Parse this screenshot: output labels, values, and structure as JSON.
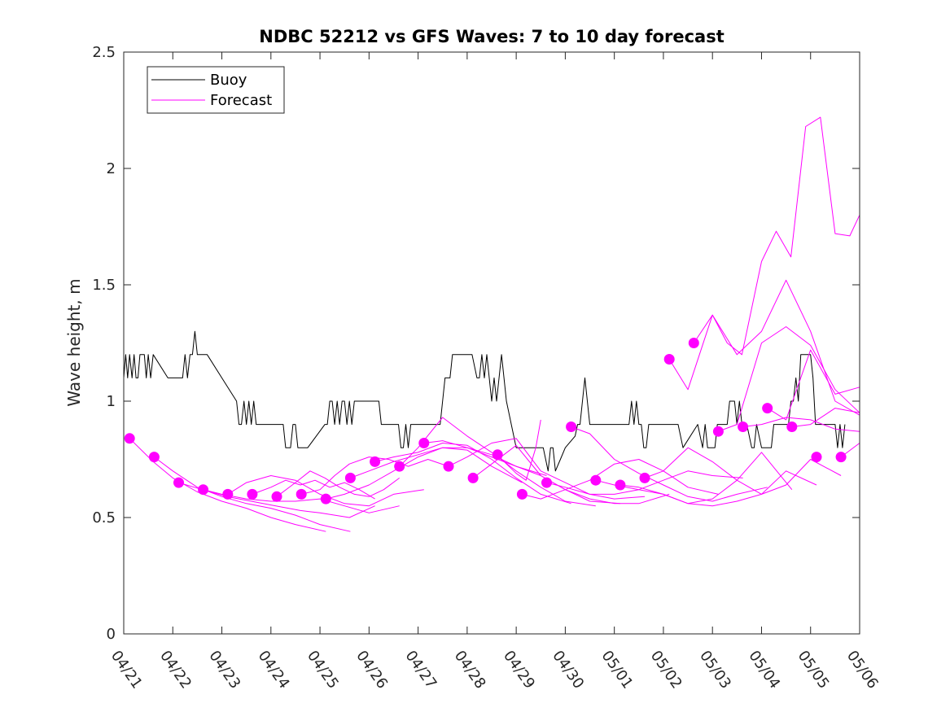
{
  "chart_data": {
    "type": "line",
    "title": "NDBC 52212 vs GFS Waves: 7 to 10 day forecast",
    "xlabel": "",
    "ylabel": "Wave height, m",
    "xlim": [
      0,
      15
    ],
    "ylim": [
      0,
      2.5
    ],
    "x_ticks": [
      "04/21",
      "04/22",
      "04/23",
      "04/24",
      "04/25",
      "04/26",
      "04/27",
      "04/28",
      "04/29",
      "04/30",
      "05/01",
      "05/02",
      "05/03",
      "05/04",
      "05/05",
      "05/06"
    ],
    "y_ticks": [
      "0",
      "0.5",
      "1",
      "1.5",
      "2",
      "2.5"
    ],
    "grid": false,
    "legend_position": "top-left",
    "colors": {
      "buoy": "#000000",
      "forecast": "#ff00ff"
    },
    "series": [
      {
        "name": "Buoy",
        "style": "line",
        "x": [
          0,
          0.04,
          0.08,
          0.12,
          0.17,
          0.21,
          0.25,
          0.29,
          0.33,
          0.37,
          0.42,
          0.46,
          0.5,
          0.55,
          0.6,
          0.9,
          1.2,
          1.25,
          1.3,
          1.35,
          1.4,
          1.45,
          1.5,
          1.55,
          1.6,
          1.65,
          1.7,
          2.0,
          2.3,
          2.35,
          2.4,
          2.45,
          2.5,
          2.55,
          2.6,
          2.65,
          2.7,
          2.75,
          3.0,
          3.2,
          3.25,
          3.3,
          3.35,
          3.4,
          3.45,
          3.5,
          3.55,
          3.6,
          3.65,
          3.7,
          3.75,
          4.1,
          4.15,
          4.2,
          4.25,
          4.3,
          4.35,
          4.4,
          4.45,
          4.5,
          4.55,
          4.6,
          4.65,
          4.7,
          4.75,
          4.8,
          4.85,
          4.9,
          5.0,
          5.2,
          5.25,
          5.35,
          5.5,
          5.55,
          5.6,
          5.65,
          5.7,
          5.75,
          5.8,
          5.85,
          5.9,
          6.0,
          6.2,
          6.45,
          6.5,
          6.55,
          6.6,
          6.65,
          6.7,
          6.75,
          6.8,
          7.1,
          7.2,
          7.25,
          7.3,
          7.35,
          7.4,
          7.45,
          7.5,
          7.55,
          7.6,
          7.7,
          7.8,
          7.9,
          8.0,
          8.05,
          8.1,
          8.15,
          8.2,
          8.25,
          8.3,
          8.35,
          8.4,
          8.45,
          8.5,
          8.55,
          8.6,
          8.65,
          8.7,
          8.75,
          8.8,
          8.9,
          9.0,
          9.2,
          9.25,
          9.3,
          9.35,
          9.4,
          9.45,
          9.5,
          9.55,
          9.6,
          9.65,
          9.7,
          9.75,
          9.8,
          9.85,
          9.9,
          10.0,
          10.1,
          10.15,
          10.2,
          10.25,
          10.3,
          10.35,
          10.4,
          10.45,
          10.5,
          10.55,
          10.6,
          10.65,
          10.7,
          10.75,
          10.8,
          10.85,
          10.9,
          11.0,
          11.1,
          11.15,
          11.2,
          11.3,
          11.4,
          11.7,
          11.8,
          11.85,
          11.9,
          11.95,
          12.0,
          12.05,
          12.1,
          12.15,
          12.2,
          12.25,
          12.3,
          12.35,
          12.4,
          12.45,
          12.5,
          12.55,
          12.6,
          12.65,
          12.7,
          12.8,
          12.85,
          12.9,
          13.0,
          13.1,
          13.15,
          13.2,
          13.25,
          13.3,
          13.35,
          13.4,
          13.45,
          13.5,
          13.55,
          13.6,
          13.65,
          13.7,
          13.75,
          13.8,
          14.0,
          14.05,
          14.1,
          14.15,
          14.2,
          14.25,
          14.3,
          14.35,
          14.4,
          14.45,
          14.5,
          14.55,
          14.6,
          14.65,
          14.7
        ],
        "y": [
          1.1,
          1.2,
          1.1,
          1.2,
          1.1,
          1.2,
          1.1,
          1.1,
          1.2,
          1.2,
          1.2,
          1.1,
          1.2,
          1.1,
          1.2,
          1.1,
          1.1,
          1.2,
          1.1,
          1.2,
          1.2,
          1.3,
          1.2,
          1.2,
          1.2,
          1.2,
          1.2,
          1.1,
          1.0,
          0.9,
          0.9,
          1.0,
          0.9,
          1.0,
          0.9,
          1.0,
          0.9,
          0.9,
          0.9,
          0.9,
          0.9,
          0.8,
          0.8,
          0.8,
          0.9,
          0.9,
          0.8,
          0.8,
          0.8,
          0.8,
          0.8,
          0.9,
          0.9,
          1.0,
          1.0,
          0.9,
          1.0,
          0.9,
          1.0,
          1.0,
          0.9,
          1.0,
          0.9,
          1.0,
          1.0,
          1.0,
          1.0,
          1.0,
          1.0,
          1.0,
          0.9,
          0.9,
          0.9,
          0.9,
          0.9,
          0.8,
          0.8,
          0.9,
          0.8,
          0.9,
          0.9,
          0.9,
          0.9,
          0.9,
          1.0,
          1.1,
          1.1,
          1.1,
          1.2,
          1.2,
          1.2,
          1.2,
          1.1,
          1.1,
          1.2,
          1.1,
          1.2,
          1.1,
          1.0,
          1.1,
          1.0,
          1.2,
          1.0,
          0.9,
          0.8,
          0.8,
          0.8,
          0.8,
          0.8,
          0.8,
          0.8,
          0.8,
          0.8,
          0.8,
          0.8,
          0.8,
          0.75,
          0.7,
          0.8,
          0.8,
          0.7,
          0.75,
          0.8,
          0.85,
          0.9,
          0.9,
          1.0,
          1.1,
          1.0,
          0.9,
          0.9,
          0.9,
          0.9,
          0.9,
          0.9,
          0.9,
          0.9,
          0.9,
          0.9,
          0.9,
          0.9,
          0.9,
          0.9,
          0.9,
          1.0,
          0.9,
          1.0,
          0.9,
          0.9,
          0.8,
          0.8,
          0.9,
          0.9,
          0.9,
          0.9,
          0.9,
          0.9,
          0.9,
          0.9,
          0.9,
          0.9,
          0.8,
          0.9,
          0.8,
          0.9,
          0.8,
          0.8,
          0.8,
          0.8,
          0.9,
          0.9,
          0.9,
          0.9,
          0.9,
          1.0,
          1.0,
          1.0,
          0.9,
          1.0,
          0.9,
          0.9,
          0.9,
          0.8,
          0.8,
          0.9,
          0.8,
          0.8,
          0.8,
          0.8,
          0.9,
          0.9,
          0.9,
          0.9,
          0.9,
          0.9,
          0.9,
          1.0,
          1.0,
          1.1,
          1.0,
          1.2,
          1.2,
          1.1,
          0.9,
          0.9,
          0.9,
          0.9,
          0.9,
          0.9,
          0.9,
          0.9,
          0.9,
          0.8,
          0.9,
          0.8,
          0.9
        ]
      },
      {
        "name": "Forecast",
        "style": "markers",
        "x": [
          0.12,
          0.62,
          1.12,
          1.62,
          2.12,
          2.62,
          3.12,
          3.62,
          4.12,
          4.62,
          5.12,
          5.62,
          6.12,
          6.62,
          7.12,
          7.62,
          8.12,
          8.62,
          9.12,
          9.62,
          10.12,
          10.62,
          11.12,
          11.62,
          12.12,
          12.62,
          13.12,
          13.62,
          14.12,
          14.62
        ],
        "y": [
          0.84,
          0.76,
          0.65,
          0.62,
          0.6,
          0.6,
          0.59,
          0.6,
          0.58,
          0.67,
          0.74,
          0.72,
          0.82,
          0.72,
          0.67,
          0.77,
          0.6,
          0.65,
          0.89,
          0.66,
          0.64,
          0.67,
          1.18,
          1.25,
          0.87,
          0.89,
          0.97,
          0.89,
          0.76,
          0.76
        ]
      },
      {
        "style": "line",
        "x": [
          0.12,
          0.6,
          1.0,
          1.5,
          2.0,
          2.5,
          3.0,
          3.5,
          4.12
        ],
        "y": [
          0.84,
          0.74,
          0.67,
          0.61,
          0.57,
          0.54,
          0.5,
          0.47,
          0.44
        ]
      },
      {
        "style": "line",
        "x": [
          0.62,
          1.0,
          1.5,
          2.0,
          2.5,
          3.0,
          3.5,
          4.0,
          4.62
        ],
        "y": [
          0.76,
          0.7,
          0.63,
          0.59,
          0.56,
          0.54,
          0.51,
          0.47,
          0.44
        ]
      },
      {
        "style": "line",
        "x": [
          1.12,
          1.6,
          2.1,
          2.6,
          3.1,
          3.6,
          4.0,
          4.6,
          5.12
        ],
        "y": [
          0.65,
          0.62,
          0.59,
          0.57,
          0.55,
          0.53,
          0.52,
          0.5,
          0.55
        ]
      },
      {
        "style": "line",
        "x": [
          1.62,
          2.0,
          2.5,
          3.0,
          3.5,
          4.0,
          4.5,
          5.0,
          5.62
        ],
        "y": [
          0.62,
          0.6,
          0.58,
          0.57,
          0.57,
          0.58,
          0.55,
          0.52,
          0.55
        ]
      },
      {
        "style": "line",
        "x": [
          2.12,
          2.5,
          3.0,
          3.5,
          4.0,
          4.5,
          5.0,
          5.5,
          6.12
        ],
        "y": [
          0.6,
          0.65,
          0.68,
          0.66,
          0.6,
          0.56,
          0.55,
          0.6,
          0.62
        ]
      },
      {
        "style": "line",
        "x": [
          2.62,
          3.0,
          3.3,
          3.6,
          3.9,
          4.2,
          4.5,
          4.8,
          5.12
        ],
        "y": [
          0.6,
          0.63,
          0.66,
          0.64,
          0.66,
          0.63,
          0.65,
          0.62,
          0.58
        ]
      },
      {
        "style": "line",
        "x": [
          3.12,
          3.5,
          3.8,
          4.1,
          4.4,
          4.7,
          5.0,
          5.3,
          5.62
        ],
        "y": [
          0.59,
          0.65,
          0.7,
          0.67,
          0.63,
          0.6,
          0.59,
          0.62,
          0.67
        ]
      },
      {
        "style": "line",
        "x": [
          3.62,
          4.0,
          4.3,
          4.6,
          5.0,
          5.4,
          5.8,
          6.2,
          6.62
        ],
        "y": [
          0.6,
          0.62,
          0.68,
          0.73,
          0.76,
          0.75,
          0.72,
          0.75,
          0.72
        ]
      },
      {
        "style": "line",
        "x": [
          4.12,
          4.5,
          5.0,
          5.5,
          6.0,
          6.5,
          7.0,
          7.5,
          8.12
        ],
        "y": [
          0.58,
          0.6,
          0.64,
          0.7,
          0.76,
          0.8,
          0.79,
          0.72,
          0.65
        ]
      },
      {
        "style": "line",
        "x": [
          4.62,
          5.0,
          5.5,
          6.0,
          6.5,
          7.0,
          7.5,
          8.0,
          8.62
        ],
        "y": [
          0.67,
          0.7,
          0.74,
          0.77,
          0.8,
          0.8,
          0.77,
          0.72,
          0.68
        ]
      },
      {
        "style": "line",
        "x": [
          5.12,
          5.5,
          6.0,
          6.5,
          7.0,
          7.5,
          8.0,
          8.5,
          9.12
        ],
        "y": [
          0.74,
          0.76,
          0.78,
          0.82,
          0.81,
          0.75,
          0.67,
          0.6,
          0.56
        ]
      },
      {
        "style": "line",
        "x": [
          5.62,
          6.0,
          6.5,
          7.0,
          7.5,
          8.0,
          8.5,
          9.0,
          9.62
        ],
        "y": [
          0.72,
          0.8,
          0.93,
          0.85,
          0.78,
          0.7,
          0.63,
          0.57,
          0.55
        ]
      },
      {
        "style": "line",
        "x": [
          6.12,
          6.5,
          7.0,
          7.5,
          8.0,
          8.5,
          9.0,
          9.5,
          10.12
        ],
        "y": [
          0.82,
          0.83,
          0.8,
          0.76,
          0.72,
          0.68,
          0.62,
          0.57,
          0.56
        ]
      },
      {
        "style": "line",
        "x": [
          6.62,
          7.0,
          7.5,
          8.0,
          8.5,
          9.0,
          9.5,
          10.0,
          10.62
        ],
        "y": [
          0.72,
          0.76,
          0.82,
          0.84,
          0.7,
          0.65,
          0.6,
          0.58,
          0.59
        ]
      },
      {
        "style": "line",
        "x": [
          7.12,
          7.5,
          8.0,
          8.5,
          9.0,
          9.5,
          10.0,
          10.5,
          11.12
        ],
        "y": [
          0.67,
          0.73,
          0.81,
          0.68,
          0.62,
          0.58,
          0.56,
          0.56,
          0.6
        ]
      },
      {
        "style": "line",
        "x": [
          7.62,
          7.8,
          8.0,
          8.2,
          8.4,
          8.5
        ],
        "y": [
          0.77,
          0.73,
          0.69,
          0.66,
          0.8,
          0.92
        ]
      },
      {
        "style": "line",
        "x": [
          8.12,
          8.5,
          9.0,
          9.5,
          10.0,
          10.5,
          11.0,
          11.5,
          12.12
        ],
        "y": [
          0.6,
          0.58,
          0.62,
          0.66,
          0.73,
          0.75,
          0.7,
          0.63,
          0.6
        ]
      },
      {
        "style": "line",
        "x": [
          8.62,
          9.0,
          9.5,
          10.0,
          10.5,
          11.0,
          11.5,
          12.0,
          12.62
        ],
        "y": [
          0.65,
          0.63,
          0.6,
          0.6,
          0.62,
          0.66,
          0.7,
          0.68,
          0.67
        ]
      },
      {
        "style": "line",
        "x": [
          9.12,
          9.5,
          10.0,
          10.5,
          11.0,
          11.5,
          12.0,
          12.5,
          13.12
        ],
        "y": [
          0.89,
          0.86,
          0.75,
          0.69,
          0.64,
          0.59,
          0.57,
          0.6,
          0.63
        ]
      },
      {
        "style": "line",
        "x": [
          9.62,
          10.0,
          10.5,
          11.0,
          11.5,
          12.0,
          12.5,
          13.0,
          13.62
        ],
        "y": [
          0.66,
          0.64,
          0.62,
          0.6,
          0.56,
          0.58,
          0.66,
          0.78,
          0.62
        ]
      },
      {
        "style": "line",
        "x": [
          10.12,
          10.5,
          11.0,
          11.5,
          12.0,
          12.5,
          13.0,
          13.5,
          14.12
        ],
        "y": [
          0.64,
          0.63,
          0.6,
          0.56,
          0.55,
          0.57,
          0.6,
          0.7,
          0.64
        ]
      },
      {
        "style": "line",
        "x": [
          10.62,
          11.0,
          11.5,
          12.0,
          12.5,
          13.0,
          13.5,
          14.0,
          14.62
        ],
        "y": [
          0.67,
          0.7,
          0.8,
          0.74,
          0.66,
          0.6,
          0.64,
          0.75,
          0.68
        ]
      },
      {
        "style": "line",
        "x": [
          11.12,
          11.5,
          12.0,
          12.5,
          13.0,
          13.5,
          14.0,
          14.5,
          15.0
        ],
        "y": [
          1.18,
          1.05,
          1.37,
          1.2,
          1.3,
          1.52,
          1.3,
          1.0,
          0.94
        ]
      },
      {
        "style": "line",
        "x": [
          11.62,
          12.0,
          12.3,
          12.6,
          13.0,
          13.3,
          13.6,
          13.9,
          14.2,
          14.5,
          14.8,
          15.0
        ],
        "y": [
          1.25,
          1.37,
          1.25,
          1.2,
          1.6,
          1.73,
          1.62,
          2.18,
          2.22,
          1.72,
          1.71,
          1.8
        ]
      },
      {
        "style": "line",
        "x": [
          12.12,
          12.5,
          13.0,
          13.5,
          14.0,
          14.5,
          15.0
        ],
        "y": [
          0.87,
          0.9,
          1.25,
          1.32,
          1.24,
          1.05,
          0.95
        ]
      },
      {
        "style": "line",
        "x": [
          12.62,
          13.0,
          13.5,
          14.0,
          14.5,
          15.0
        ],
        "y": [
          0.89,
          0.9,
          0.93,
          0.92,
          0.88,
          0.87
        ]
      },
      {
        "style": "line",
        "x": [
          13.12,
          13.5,
          14.0,
          14.5,
          15.0
        ],
        "y": [
          0.97,
          0.92,
          1.22,
          1.03,
          1.06
        ]
      },
      {
        "style": "line",
        "x": [
          13.62,
          14.0,
          14.5,
          15.0
        ],
        "y": [
          0.89,
          0.9,
          0.97,
          0.95
        ]
      },
      {
        "style": "line",
        "x": [
          14.62,
          15.0
        ],
        "y": [
          0.76,
          0.82
        ]
      }
    ]
  }
}
